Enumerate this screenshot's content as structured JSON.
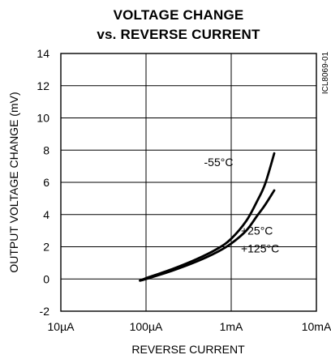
{
  "chart_data": {
    "type": "line",
    "title": [
      "VOLTAGE CHANGE",
      "vs. REVERSE CURRENT"
    ],
    "xlabel": "REVERSE CURRENT",
    "ylabel": "OUTPUT VOLTAGE CHANGE (mV)",
    "x_scale": "log",
    "xlim": [
      1e-05,
      0.01
    ],
    "ylim": [
      -2,
      14
    ],
    "x_ticks": [
      {
        "value": 1e-05,
        "label": "10µA"
      },
      {
        "value": 0.0001,
        "label": "100µA"
      },
      {
        "value": 0.001,
        "label": "1mA"
      },
      {
        "value": 0.01,
        "label": "10mA"
      }
    ],
    "y_ticks": [
      {
        "value": -2,
        "label": "-2"
      },
      {
        "value": 0,
        "label": "0"
      },
      {
        "value": 2,
        "label": "2"
      },
      {
        "value": 4,
        "label": "4"
      },
      {
        "value": 6,
        "label": "6"
      },
      {
        "value": 8,
        "label": "8"
      },
      {
        "value": 10,
        "label": "10"
      },
      {
        "value": 12,
        "label": "12"
      },
      {
        "value": 14,
        "label": "14"
      }
    ],
    "grid": true,
    "part_number": "ICL8069-01",
    "series": [
      {
        "points": [
          [
            8.5e-05,
            -0.1
          ],
          [
            0.0001,
            0.05
          ],
          [
            0.0002,
            0.6
          ],
          [
            0.0004,
            1.25
          ],
          [
            0.0007,
            1.9
          ],
          [
            0.001,
            2.5
          ],
          [
            0.0015,
            3.6
          ],
          [
            0.002,
            4.8
          ],
          [
            0.0025,
            5.9
          ],
          [
            0.0032,
            7.8
          ]
        ]
      },
      {
        "points": [
          [
            8.5e-05,
            -0.1
          ],
          [
            0.0001,
            0.0
          ],
          [
            0.0002,
            0.5
          ],
          [
            0.0004,
            1.1
          ],
          [
            0.0007,
            1.7
          ],
          [
            0.001,
            2.2
          ],
          [
            0.0015,
            3.0
          ],
          [
            0.002,
            3.9
          ],
          [
            0.0025,
            4.6
          ],
          [
            0.0032,
            5.5
          ]
        ]
      }
    ],
    "annotations": [
      {
        "text": "-55°C",
        "x": 0.00048,
        "y": 7.25
      },
      {
        "text": "+25°C",
        "x": 0.0013,
        "y": 3.0
      },
      {
        "text": "+125°C",
        "x": 0.0013,
        "y": 1.9
      }
    ]
  }
}
